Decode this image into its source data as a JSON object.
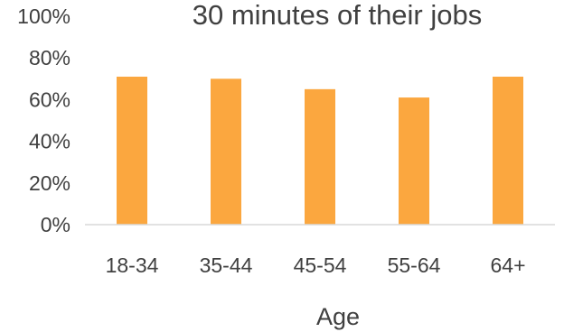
{
  "chart_data": {
    "type": "bar",
    "title": "30 minutes of their jobs",
    "xlabel": "Age",
    "ylabel": "",
    "categories": [
      "18-34",
      "35-44",
      "45-54",
      "55-64",
      "64+"
    ],
    "series": [
      {
        "values": [
          0.71,
          0.7,
          0.65,
          0.61,
          0.71
        ],
        "color": "#FBA73F"
      }
    ],
    "ylim": [
      0,
      1
    ],
    "yticks": [
      "0%",
      "20%",
      "40%",
      "60%",
      "80%",
      "100%"
    ],
    "grid": false,
    "legend": "none",
    "axis_line_color": "#D9D9D9",
    "text_color": "#404040"
  }
}
